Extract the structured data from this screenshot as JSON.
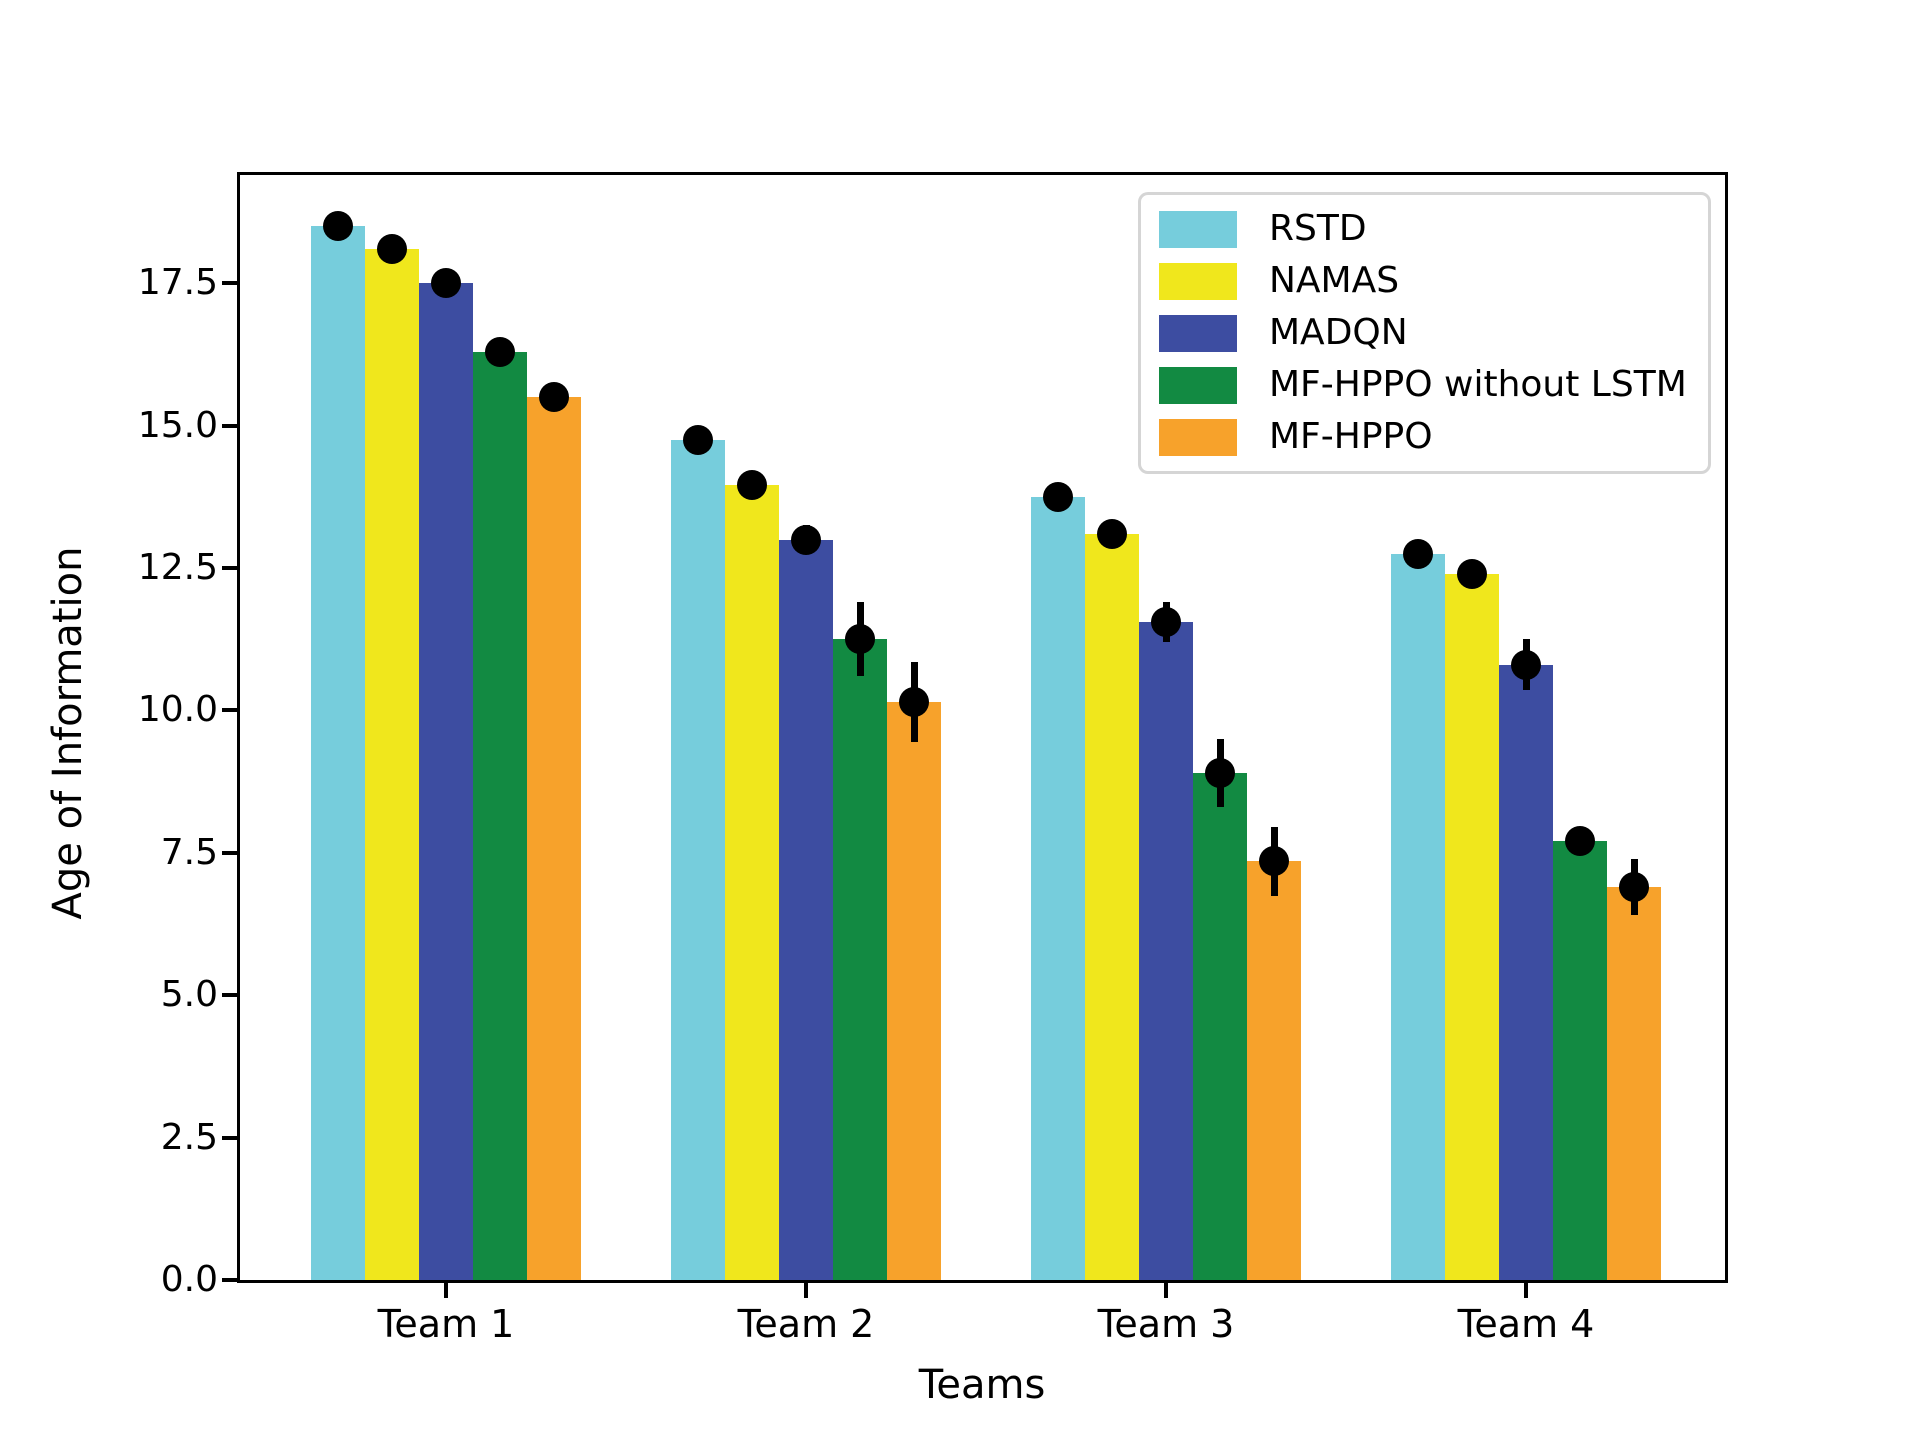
{
  "figure": {
    "background": "#ffffff",
    "frame_color": "#000000"
  },
  "chart_data": {
    "type": "bar",
    "title": "",
    "xlabel": "Teams",
    "ylabel": "Age of Information",
    "categories": [
      "Team 1",
      "Team 2",
      "Team 3",
      "Team 4"
    ],
    "series": [
      {
        "name": "RSTD",
        "color": "#76cddc",
        "values": [
          18.5,
          14.75,
          13.75,
          12.75
        ],
        "errors": [
          0.1,
          0.1,
          0.1,
          0.1
        ]
      },
      {
        "name": "NAMAS",
        "color": "#f0e71c",
        "values": [
          18.1,
          13.95,
          13.1,
          12.4
        ],
        "errors": [
          0.1,
          0.1,
          0.1,
          0.1
        ]
      },
      {
        "name": "MADQN",
        "color": "#3d4da1",
        "values": [
          17.5,
          13.0,
          11.55,
          10.8
        ],
        "errors": [
          0.1,
          0.25,
          0.35,
          0.45
        ]
      },
      {
        "name": "MF-HPPO without LSTM",
        "color": "#128a42",
        "values": [
          16.3,
          11.25,
          8.9,
          7.7
        ],
        "errors": [
          0.12,
          0.65,
          0.6,
          0.2
        ]
      },
      {
        "name": "MF-HPPO",
        "color": "#f7a22b",
        "values": [
          15.5,
          10.15,
          7.35,
          6.9
        ],
        "errors": [
          0.12,
          0.7,
          0.6,
          0.5
        ]
      }
    ],
    "marker": {
      "shape": "circle",
      "color": "#000000"
    },
    "error_bar_color": "#000000",
    "y_ticks": [
      0.0,
      2.5,
      5.0,
      7.5,
      10.0,
      12.5,
      15.0,
      17.5
    ],
    "y_tick_labels": [
      "0.0",
      "2.5",
      "5.0",
      "7.5",
      "10.0",
      "12.5",
      "15.0",
      "17.5"
    ],
    "ylim": [
      0,
      19.4
    ],
    "grid": false,
    "legend": {
      "position": "upper right"
    }
  }
}
